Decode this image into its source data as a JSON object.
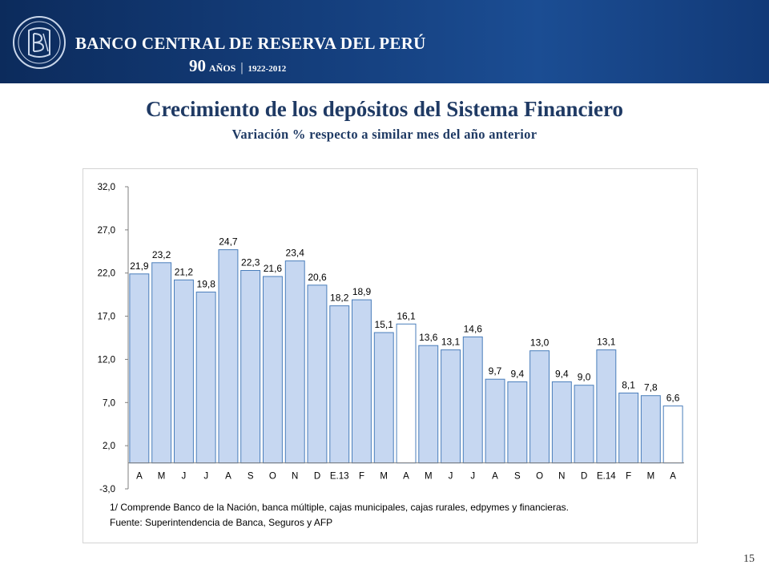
{
  "header": {
    "bank_name": "BANCO CENTRAL DE RESERVA DEL PERÚ",
    "anniversary_number": "90",
    "anniversary_word": "AÑOS",
    "anniversary_years": "1922-2012",
    "colors": {
      "band": "#15407f",
      "text": "#ffffff"
    }
  },
  "slide": {
    "title": "Crecimiento de los depósitos del Sistema Financiero",
    "subtitle": "Variación % respecto a similar mes del año anterior",
    "page_number": "15"
  },
  "notes": {
    "footnote": "1/ Comprende Banco de la Nación, banca múltiple, cajas municipales, cajas rurales, edpymes y financieras.",
    "source": "Fuente: Superintendencia de Banca, Seguros y AFP"
  },
  "chart_data": {
    "type": "bar",
    "categories": [
      "A",
      "M",
      "J",
      "J",
      "A",
      "S",
      "O",
      "N",
      "D",
      "E.13",
      "F",
      "M",
      "A",
      "M",
      "J",
      "J",
      "A",
      "S",
      "O",
      "N",
      "D",
      "E.14",
      "F",
      "M",
      "A"
    ],
    "values": [
      21.9,
      23.2,
      21.2,
      19.8,
      24.7,
      22.3,
      21.6,
      23.4,
      20.6,
      18.2,
      18.9,
      15.1,
      16.1,
      13.6,
      13.1,
      14.6,
      9.7,
      9.4,
      13.0,
      9.4,
      9.0,
      13.1,
      8.1,
      7.8,
      6.6
    ],
    "value_labels": [
      "21,9",
      "23,2",
      "21,2",
      "19,8",
      "24,7",
      "22,3",
      "21,6",
      "23,4",
      "20,6",
      "18,2",
      "18,9",
      "15,1",
      "16,1",
      "13,6",
      "13,1",
      "14,6",
      "9,7",
      "9,4",
      "13,0",
      "9,4",
      "9,0",
      "13,1",
      "8,1",
      "7,8",
      "6,6"
    ],
    "highlighted": [
      false,
      false,
      false,
      false,
      false,
      false,
      false,
      false,
      false,
      false,
      false,
      false,
      true,
      false,
      false,
      false,
      false,
      false,
      false,
      false,
      false,
      false,
      false,
      false,
      true
    ],
    "y_ticks": [
      32,
      27,
      22,
      17,
      12,
      7,
      2,
      -3
    ],
    "y_tick_labels": [
      "32,0",
      "27,0",
      "22,0",
      "17,0",
      "12,0",
      "7,0",
      "2,0",
      "-3,0"
    ],
    "ylim": [
      -3,
      32
    ],
    "baseline": 0,
    "grid": false,
    "legend": "none",
    "colors": {
      "bar_fill": "#c6d7f1",
      "bar_stroke": "#4a7ebb",
      "highlight_fill": "#ffffff",
      "axis": "#7f7f7f"
    }
  }
}
